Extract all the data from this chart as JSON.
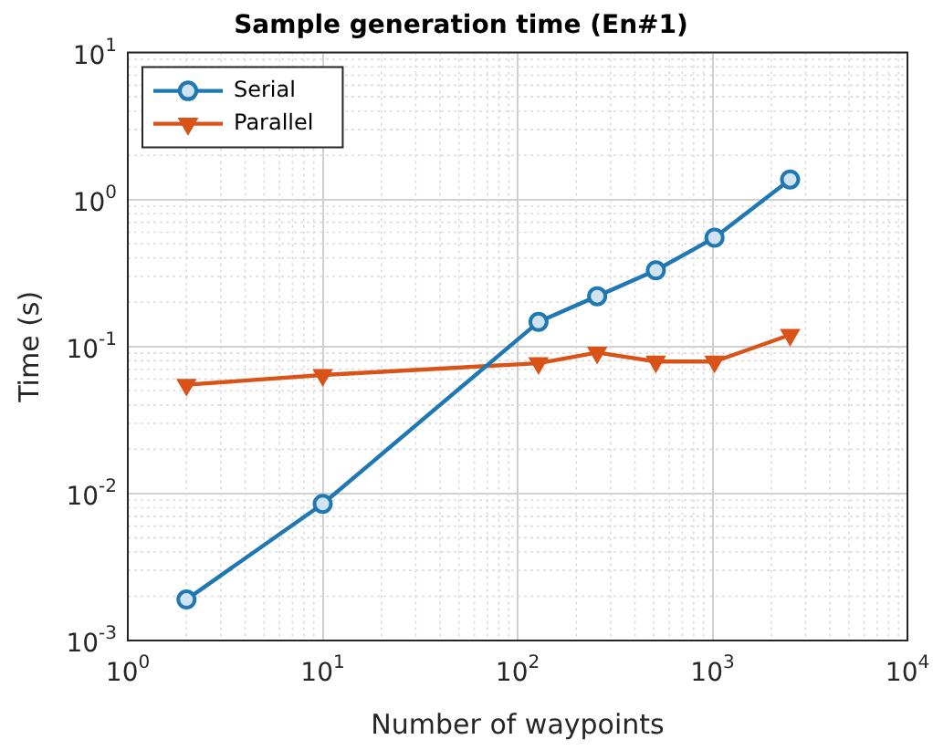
{
  "chart_data": {
    "type": "line",
    "title": "Sample generation time (En#1)",
    "xlabel": "Number of waypoints",
    "ylabel": "Time (s)",
    "log": "xy",
    "grid": true,
    "legend": "top left",
    "xlim": [
      1,
      10000
    ],
    "xticks": [
      {
        "value": 1,
        "label": "10$^{0}$"
      },
      {
        "value": 10,
        "label": "10$^{1}$"
      },
      {
        "value": 100,
        "label": "10$^{2}$"
      },
      {
        "value": 1000,
        "label": "10$^{3}$"
      },
      {
        "value": 10000,
        "label": "10$^{4}$"
      }
    ],
    "ylim": [
      0.001,
      10
    ],
    "yticks": [
      {
        "value": 0.001,
        "label": "10$^{-3}$"
      },
      {
        "value": 0.01,
        "label": "10$^{-2}$"
      },
      {
        "value": 0.1,
        "label": "10$^{-1}$"
      },
      {
        "value": 1,
        "label": "10$^{0}$"
      },
      {
        "value": 10,
        "label": "10$^{1}$"
      }
    ],
    "x": [
      2,
      10,
      128,
      256,
      512,
      1024,
      2500
    ],
    "series": [
      {
        "name": "Serial",
        "color": "#1f77b4",
        "marker": "circle",
        "values": [
          0.0019,
          0.0085,
          0.147,
          0.22,
          0.33,
          0.55,
          1.37
        ]
      },
      {
        "name": "Parallel",
        "color": "#d95319",
        "marker": "triangle",
        "values": [
          0.055,
          0.064,
          0.077,
          0.091,
          0.079,
          0.079,
          0.12
        ]
      }
    ]
  }
}
